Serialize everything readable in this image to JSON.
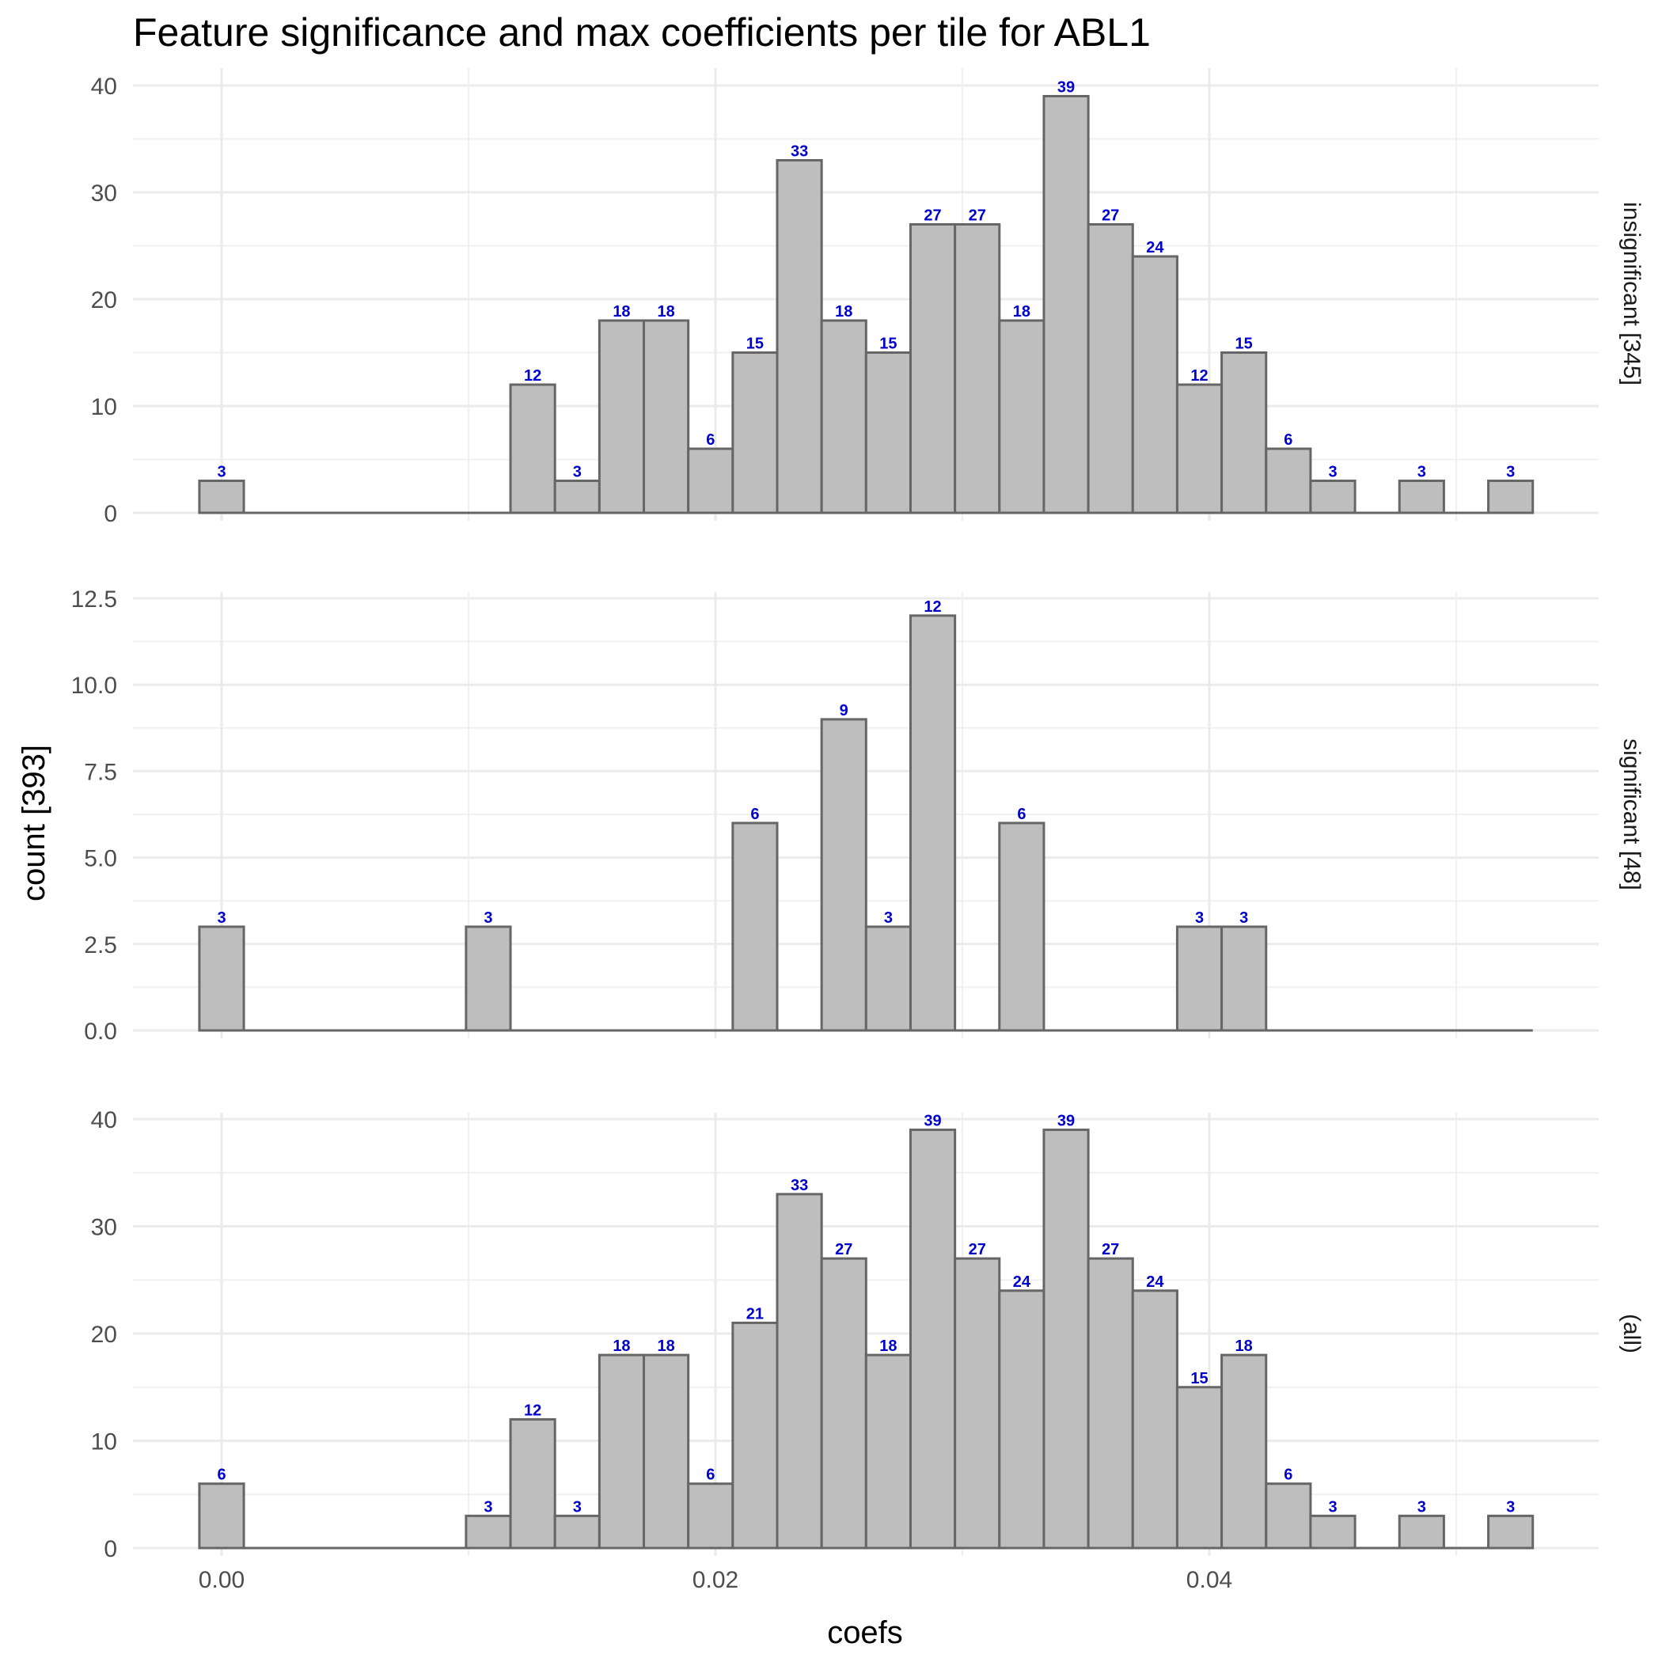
{
  "chart_data": {
    "type": "bar",
    "title": "Feature significance and max coefficients per tile for ABL1",
    "xlabel": "coefs",
    "ylabel": "count [393]",
    "bin_width": 0.0018,
    "bin_centers": [
      0.0,
      0.0018,
      0.0036,
      0.0054,
      0.0072,
      0.009,
      0.0108,
      0.0126,
      0.0144,
      0.0162,
      0.018,
      0.0198,
      0.0216,
      0.0234,
      0.0252,
      0.027,
      0.0288,
      0.0306,
      0.0324,
      0.0342,
      0.036,
      0.0378,
      0.0396,
      0.0414,
      0.0432,
      0.045,
      0.0468,
      0.0486,
      0.0504,
      0.0522
    ],
    "x_ticks": [
      "0.00",
      "0.02",
      "0.04"
    ],
    "x_tick_values": [
      0.0,
      0.02,
      0.04
    ],
    "xlim": [
      -0.0072,
      0.0522
    ],
    "label_color": "#0000cc",
    "bar_fill": "#bebebe",
    "bar_stroke": "#666666",
    "grid": true,
    "panels": [
      {
        "name": "insignificant [345]",
        "ylim": [
          0,
          40
        ],
        "y_ticks": [
          "0",
          "10",
          "20",
          "30",
          "40"
        ],
        "y_tick_values": [
          0,
          10,
          20,
          30,
          40
        ],
        "counts": [
          3,
          0,
          0,
          0,
          0,
          0,
          0,
          12,
          3,
          18,
          18,
          6,
          15,
          33,
          18,
          15,
          27,
          27,
          18,
          39,
          27,
          24,
          12,
          15,
          6,
          3,
          0,
          3,
          0,
          3
        ],
        "labels": [
          "3",
          "",
          "",
          "",
          "",
          "",
          "",
          "12",
          "3",
          "18",
          "18",
          "6",
          "15",
          "33",
          "18",
          "15",
          "27",
          "27",
          "18",
          "39",
          "27",
          "24",
          "12",
          "15",
          "6",
          "3",
          "",
          "3",
          "",
          "3"
        ]
      },
      {
        "name": "significant [48]",
        "ylim": [
          0,
          12.5
        ],
        "y_ticks": [
          "0.0",
          "2.5",
          "5.0",
          "7.5",
          "10.0",
          "12.5"
        ],
        "y_tick_values": [
          0,
          2.5,
          5,
          7.5,
          10,
          12.5
        ],
        "counts": [
          3,
          0,
          0,
          0,
          0,
          0,
          3,
          0,
          0,
          0,
          0,
          0,
          6,
          0,
          9,
          3,
          12,
          0,
          6,
          0,
          0,
          0,
          3,
          3,
          0,
          0,
          0,
          0,
          0,
          0
        ],
        "labels": [
          "3",
          "",
          "",
          "",
          "",
          "",
          "3",
          "",
          "",
          "",
          "",
          "",
          "6",
          "",
          "9",
          "3",
          "12",
          "",
          "6",
          "",
          "",
          "",
          "3",
          "3",
          "",
          "",
          "",
          "",
          "",
          ""
        ]
      },
      {
        "name": "(all)",
        "ylim": [
          0,
          40
        ],
        "y_ticks": [
          "0",
          "10",
          "20",
          "30",
          "40"
        ],
        "y_tick_values": [
          0,
          10,
          20,
          30,
          40
        ],
        "counts": [
          6,
          0,
          0,
          0,
          0,
          0,
          3,
          12,
          3,
          18,
          18,
          6,
          21,
          33,
          27,
          18,
          39,
          27,
          24,
          39,
          27,
          24,
          15,
          18,
          6,
          3,
          0,
          3,
          0,
          3
        ],
        "labels": [
          "6",
          "",
          "",
          "",
          "",
          "",
          "3",
          "12",
          "3",
          "18",
          "18",
          "6",
          "21",
          "33",
          "27",
          "18",
          "39",
          "27",
          "24",
          "39",
          "27",
          "24",
          "15",
          "18",
          "6",
          "3",
          "",
          "3",
          "",
          "3"
        ]
      }
    ]
  }
}
